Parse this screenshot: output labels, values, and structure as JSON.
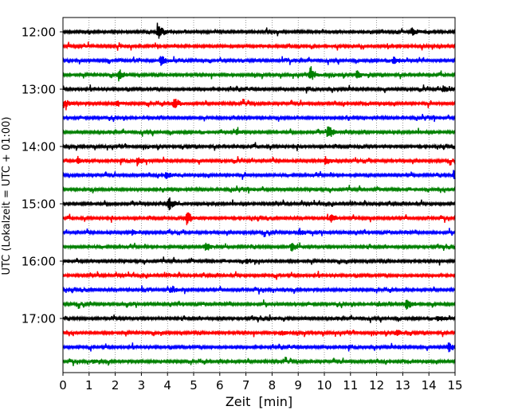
{
  "chart_data": {
    "type": "line",
    "title": "",
    "xlabel": "Zeit  [min]",
    "ylabel": "UTC (Lokalzeit = UTC + 01:00)",
    "xlim": [
      0,
      15
    ],
    "x_ticks": [
      "0",
      "1",
      "2",
      "3",
      "4",
      "5",
      "6",
      "7",
      "8",
      "9",
      "10",
      "11",
      "12",
      "13",
      "14",
      "15"
    ],
    "y_tick_labels": [
      "12:00",
      "13:00",
      "14:00",
      "15:00",
      "16:00",
      "17:00"
    ],
    "grid": "vertical dotted",
    "row_minutes": 15,
    "trace_colors": [
      "#000000",
      "#ff0000",
      "#0000ff",
      "#008000"
    ],
    "traces": [
      {
        "start": "12:00",
        "color": "#000000"
      },
      {
        "start": "12:15",
        "color": "#ff0000"
      },
      {
        "start": "12:30",
        "color": "#0000ff"
      },
      {
        "start": "12:45",
        "color": "#008000"
      },
      {
        "start": "13:00",
        "color": "#000000"
      },
      {
        "start": "13:15",
        "color": "#ff0000"
      },
      {
        "start": "13:30",
        "color": "#0000ff"
      },
      {
        "start": "13:45",
        "color": "#008000"
      },
      {
        "start": "14:00",
        "color": "#000000"
      },
      {
        "start": "14:15",
        "color": "#ff0000"
      },
      {
        "start": "14:30",
        "color": "#0000ff"
      },
      {
        "start": "14:45",
        "color": "#008000"
      },
      {
        "start": "15:00",
        "color": "#000000"
      },
      {
        "start": "15:15",
        "color": "#ff0000"
      },
      {
        "start": "15:30",
        "color": "#0000ff"
      },
      {
        "start": "15:45",
        "color": "#008000"
      },
      {
        "start": "16:00",
        "color": "#000000"
      },
      {
        "start": "16:15",
        "color": "#ff0000"
      },
      {
        "start": "16:30",
        "color": "#0000ff"
      },
      {
        "start": "16:45",
        "color": "#008000"
      },
      {
        "start": "17:00",
        "color": "#000000"
      },
      {
        "start": "17:15",
        "color": "#ff0000"
      },
      {
        "start": "17:30",
        "color": "#0000ff"
      },
      {
        "start": "17:45",
        "color": "#008000"
      }
    ],
    "events": [
      {
        "row": 0,
        "minute": 3.65,
        "amplitude": 0.9
      },
      {
        "row": 0,
        "minute": 13.35,
        "amplitude": 0.45
      },
      {
        "row": 2,
        "minute": 3.75,
        "amplitude": 0.65
      },
      {
        "row": 2,
        "minute": 12.65,
        "amplitude": 0.55
      },
      {
        "row": 3,
        "minute": 2.15,
        "amplitude": 0.6
      },
      {
        "row": 3,
        "minute": 9.45,
        "amplitude": 0.9
      },
      {
        "row": 3,
        "minute": 11.25,
        "amplitude": 0.45
      },
      {
        "row": 4,
        "minute": 14.55,
        "amplitude": 0.45
      },
      {
        "row": 5,
        "minute": 0.05,
        "amplitude": 0.5
      },
      {
        "row": 5,
        "minute": 4.25,
        "amplitude": 0.7
      },
      {
        "row": 5,
        "minute": 2.05,
        "amplitude": 0.35
      },
      {
        "row": 7,
        "minute": 10.15,
        "amplitude": 0.9
      },
      {
        "row": 7,
        "minute": 6.65,
        "amplitude": 0.3
      },
      {
        "row": 9,
        "minute": 0.55,
        "amplitude": 0.45
      },
      {
        "row": 9,
        "minute": 2.85,
        "amplitude": 0.55
      },
      {
        "row": 9,
        "minute": 10.05,
        "amplitude": 0.55
      },
      {
        "row": 10,
        "minute": 3.95,
        "amplitude": 0.45
      },
      {
        "row": 10,
        "minute": 14.95,
        "amplitude": 0.55
      },
      {
        "row": 12,
        "minute": 4.05,
        "amplitude": 0.75
      },
      {
        "row": 13,
        "minute": 4.75,
        "amplitude": 0.9
      },
      {
        "row": 13,
        "minute": 10.25,
        "amplitude": 0.4
      },
      {
        "row": 14,
        "minute": 9.05,
        "amplitude": 0.45
      },
      {
        "row": 14,
        "minute": 2.65,
        "amplitude": 0.3
      },
      {
        "row": 15,
        "minute": 5.45,
        "amplitude": 0.55
      },
      {
        "row": 15,
        "minute": 8.75,
        "amplitude": 0.55
      },
      {
        "row": 16,
        "minute": 7.05,
        "amplitude": 0.25
      },
      {
        "row": 18,
        "minute": 4.15,
        "amplitude": 0.45
      },
      {
        "row": 19,
        "minute": 13.15,
        "amplitude": 0.75
      },
      {
        "row": 19,
        "minute": 12.05,
        "amplitude": 0.25
      },
      {
        "row": 20,
        "minute": 14.35,
        "amplitude": 0.4
      },
      {
        "row": 21,
        "minute": 12.75,
        "amplitude": 0.35
      },
      {
        "row": 21,
        "minute": 8.35,
        "amplitude": 0.3
      },
      {
        "row": 22,
        "minute": 14.75,
        "amplitude": 0.6
      },
      {
        "row": 23,
        "minute": 1.15,
        "amplitude": 0.25
      }
    ]
  }
}
